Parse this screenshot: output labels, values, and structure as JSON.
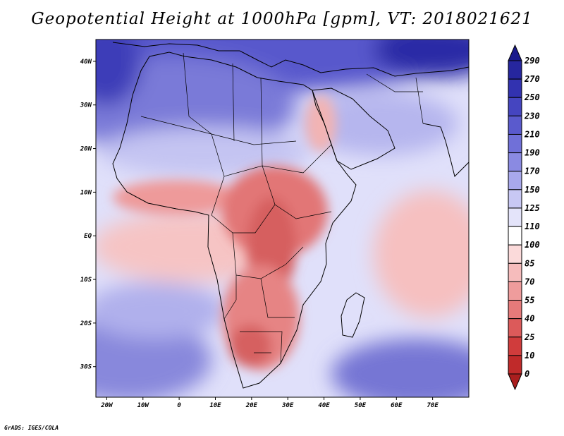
{
  "title": "Geopotential Height at 1000hPa [gpm], VT: 2018021621",
  "credit": "GrADS: IGES/COLA",
  "map": {
    "lon_range": [
      -23,
      80
    ],
    "lat_range": [
      -37,
      45
    ],
    "lat_ticks": [
      {
        "value": 40,
        "label": "40N"
      },
      {
        "value": 30,
        "label": "30N"
      },
      {
        "value": 20,
        "label": "20N"
      },
      {
        "value": 10,
        "label": "10N"
      },
      {
        "value": 0,
        "label": "EQ"
      },
      {
        "value": -10,
        "label": "10S"
      },
      {
        "value": -20,
        "label": "20S"
      },
      {
        "value": -30,
        "label": "30S"
      }
    ],
    "lon_ticks": [
      {
        "value": -20,
        "label": "20W"
      },
      {
        "value": -10,
        "label": "10W"
      },
      {
        "value": 0,
        "label": "0"
      },
      {
        "value": 10,
        "label": "10E"
      },
      {
        "value": 20,
        "label": "20E"
      },
      {
        "value": 30,
        "label": "30E"
      },
      {
        "value": 40,
        "label": "40E"
      },
      {
        "value": 50,
        "label": "50E"
      },
      {
        "value": 60,
        "label": "60E"
      },
      {
        "value": 70,
        "label": "70E"
      }
    ]
  },
  "colorbar": {
    "levels": [
      "290",
      "270",
      "250",
      "230",
      "210",
      "190",
      "170",
      "150",
      "125",
      "110",
      "100",
      "85",
      "70",
      "55",
      "40",
      "25",
      "10",
      "0"
    ],
    "colors": [
      "#1a1a8c",
      "#26269e",
      "#3232b0",
      "#4545c0",
      "#5a5acd",
      "#7070d8",
      "#8a8ae2",
      "#a8a8ec",
      "#c8c8f4",
      "#e4e4fa",
      "#ffffff",
      "#fbdada",
      "#f6bcbc",
      "#ef9c9c",
      "#e67a7a",
      "#dc5a5a",
      "#d03c3c",
      "#c02a2a",
      "#aa1e1e"
    ]
  },
  "colors": {
    "ocean_high": "#3b3bb8",
    "ocean_mid": "#9d9de6",
    "ocean_pale": "#dcdcf8",
    "low_pale": "#f9d0d0",
    "low_mid": "#ee9898",
    "low_deep": "#d95e5e"
  }
}
